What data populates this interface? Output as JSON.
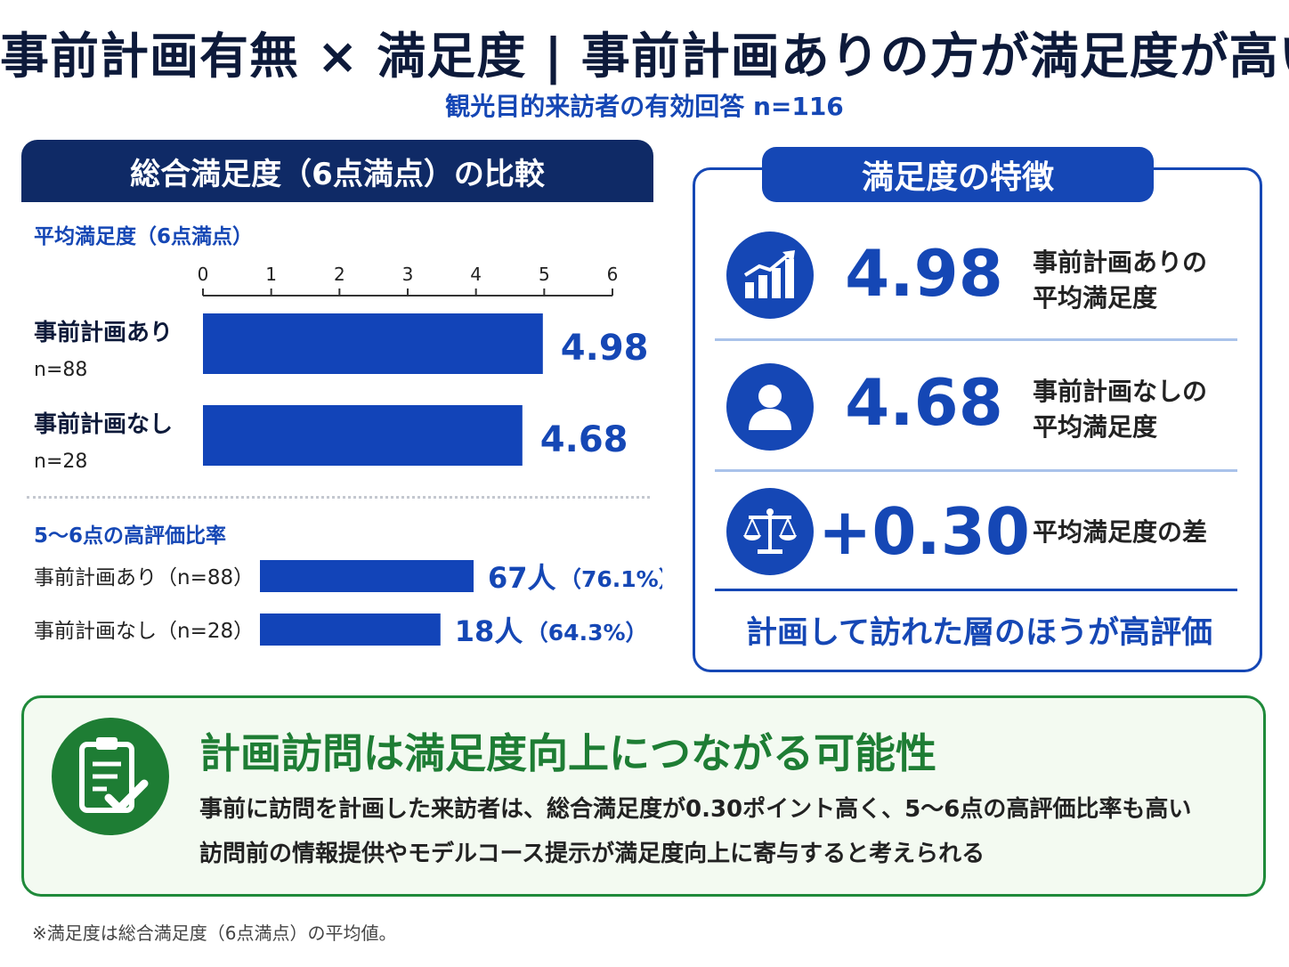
{
  "title": "事前計画有無 × 満足度 | 事前計画ありの方が満足度が高い",
  "subtitle": "観光目的来訪者の有効回答 n=116",
  "left_panel": {
    "header": "総合満足度（6点満点）の比較",
    "avg_section_label": "平均満足度（6点満点）",
    "high_section_label": "5〜6点の高評価比率"
  },
  "right_panel": {
    "header": "満足度の特徴",
    "stats": [
      {
        "icon": "growth-chart-icon",
        "value": "4.98",
        "label_line1": "事前計画ありの",
        "label_line2": "平均満足度"
      },
      {
        "icon": "person-icon",
        "value": "4.68",
        "label_line1": "事前計画なしの",
        "label_line2": "平均満足度"
      },
      {
        "icon": "scale-icon",
        "value": "+0.30",
        "label_line1": "平均満足度の差",
        "label_line2": ""
      }
    ],
    "conclusion": "計画して訪れた層のほうが高評価"
  },
  "green_box": {
    "icon": "clipboard-check-icon",
    "title": "計画訪問は満足度向上につながる可能性",
    "line1": "事前に訪問を計画した来訪者は、総合満足度が0.30ポイント高く、5〜6点の高評価比率も高い",
    "line2": "訪問前の情報提供やモデルコース提示が満足度向上に寄与すると考えられる"
  },
  "footnote": "※満足度は総合満足度（6点満点）の平均値。",
  "colors": {
    "navy": "#0f2a66",
    "blue": "#1547b5",
    "green": "#1e7d34",
    "bar": "#1244b8"
  },
  "chart_data": [
    {
      "type": "bar",
      "orientation": "horizontal",
      "title": "平均満足度（6点満点）",
      "categories": [
        "事前計画あり",
        "事前計画なし"
      ],
      "category_notes": [
        "n=88",
        "n=28"
      ],
      "values": [
        4.98,
        4.68
      ],
      "value_labels": [
        "4.98",
        "4.68"
      ],
      "xlim": [
        0,
        6
      ],
      "xticks": [
        "0",
        "1",
        "2",
        "3",
        "4",
        "5",
        "6"
      ],
      "grid": false
    },
    {
      "type": "bar",
      "orientation": "horizontal",
      "title": "5〜6点の高評価比率",
      "categories": [
        "事前計画あり（n=88）",
        "事前計画なし（n=28）"
      ],
      "values": [
        76.1,
        64.3
      ],
      "counts": [
        67,
        18
      ],
      "value_labels": [
        "67人",
        "18人"
      ],
      "pct_labels": [
        "（76.1%）",
        "（64.3%）"
      ],
      "unit": "%",
      "grid": false
    }
  ]
}
